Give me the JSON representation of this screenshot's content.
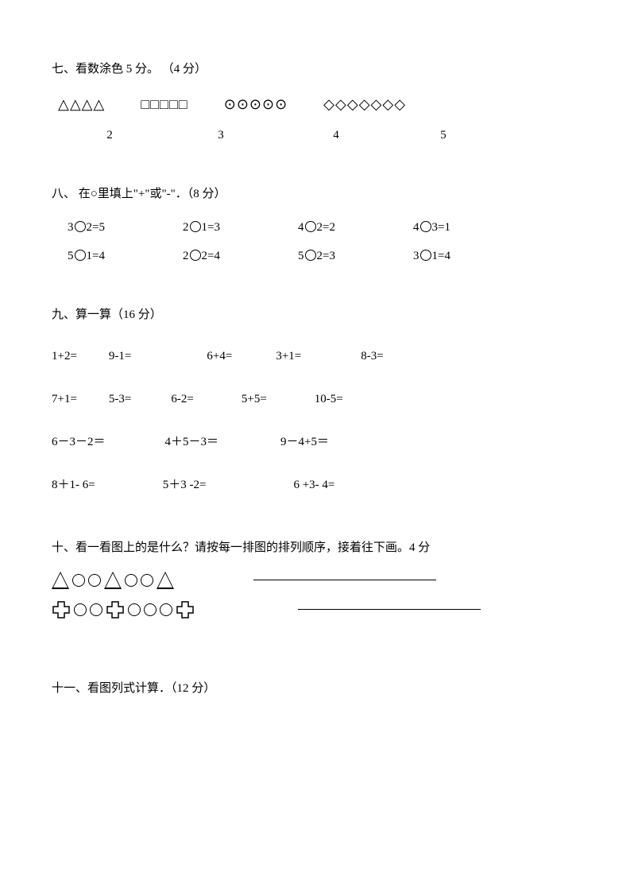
{
  "q7": {
    "title": "七、看数涂色 5 分。 （4 分）",
    "groups": [
      {
        "shape": "△",
        "count": 4,
        "number": "2"
      },
      {
        "shape": "□",
        "count": 5,
        "number": "3"
      },
      {
        "shape": "⊙",
        "count": 5,
        "number": "4"
      },
      {
        "shape": "◇",
        "count": 7,
        "number": "5"
      }
    ]
  },
  "q8": {
    "title": "八、 在○里填上\"+\"或\"-\"．（8 分）",
    "rows": [
      [
        {
          "left": "3",
          "right": "2=5"
        },
        {
          "left": "2",
          "right": "1=3"
        },
        {
          "left": "4",
          "right": "2=2"
        },
        {
          "left": "4",
          "right": "3=1"
        }
      ],
      [
        {
          "left": "5",
          "right": "1=4"
        },
        {
          "left": "2",
          "right": "2=4"
        },
        {
          "left": "5",
          "right": "2=3"
        },
        {
          "left": "3",
          "right": "1=4"
        }
      ]
    ]
  },
  "q9": {
    "title": "九、算一算（16 分）",
    "rows": [
      [
        "1+2=",
        "9-1=",
        "6+4=",
        "3+1=",
        "8-3="
      ],
      [
        "7+1=",
        "5-3=",
        "6-2=",
        "5+5=",
        "10-5="
      ],
      [
        "6－3－2＝",
        "4＋5－3＝",
        "9－4+5＝"
      ],
      [
        "8＋1- 6=",
        "5＋3 -2=",
        "6 +3- 4="
      ]
    ],
    "row_gaps": [
      [
        40,
        95,
        55,
        75,
        0
      ],
      [
        40,
        50,
        60,
        60,
        0
      ],
      [
        75,
        78,
        0
      ],
      [
        85,
        110,
        0
      ]
    ]
  },
  "q10": {
    "title": "十、看一看图上的是什么？请按每一排图的排列顺序，接着往下画。4 分",
    "row1_underline_ml": 100,
    "row2_underline_ml": 130
  },
  "q11": {
    "title": "十一、看图列式计算．（12 分）"
  },
  "colors": {
    "text": "#000000",
    "background": "#ffffff"
  },
  "font_size": 15
}
